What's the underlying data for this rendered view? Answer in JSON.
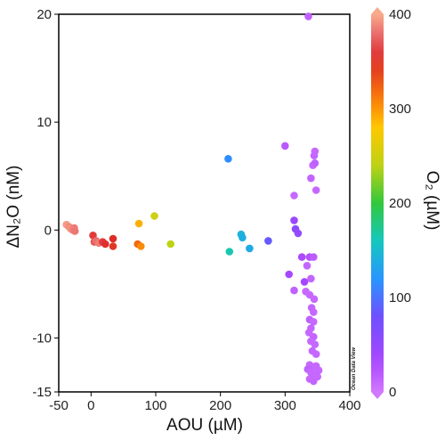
{
  "chart_data": {
    "type": "scatter",
    "xlabel": "AOU (µM)",
    "ylabel": "ΔN₂O (nM)",
    "xlim": [
      -50,
      400
    ],
    "ylim": [
      -15,
      20
    ],
    "x_ticks": [
      -50,
      0,
      100,
      200,
      300,
      400
    ],
    "y_ticks": [
      -15,
      -10,
      0,
      10,
      20
    ],
    "grid": false,
    "watermark": "Ocean Data View",
    "colorbar": {
      "label": "O₂ (µM)",
      "min": 0,
      "max": 400,
      "ticks": [
        0,
        100,
        200,
        300,
        400
      ]
    },
    "points": [
      {
        "x": 336,
        "y": 19.8,
        "c": 15
      },
      {
        "x": -38,
        "y": 0.5,
        "c": 395
      },
      {
        "x": -34,
        "y": 0.3,
        "c": 390
      },
      {
        "x": -31,
        "y": 0.1,
        "c": 392
      },
      {
        "x": -28,
        "y": 0.0,
        "c": 388
      },
      {
        "x": -26,
        "y": 0.2,
        "c": 385
      },
      {
        "x": -25,
        "y": -0.1,
        "c": 383
      },
      {
        "x": 3,
        "y": -0.5,
        "c": 360
      },
      {
        "x": 5,
        "y": -1.1,
        "c": 370
      },
      {
        "x": 8,
        "y": -1.0,
        "c": 380
      },
      {
        "x": 12,
        "y": -1.2,
        "c": 385
      },
      {
        "x": 18,
        "y": -1.1,
        "c": 360
      },
      {
        "x": 22,
        "y": -1.3,
        "c": 355
      },
      {
        "x": 34,
        "y": -0.8,
        "c": 350
      },
      {
        "x": 34,
        "y": -1.5,
        "c": 345
      },
      {
        "x": 72,
        "y": -1.3,
        "c": 320
      },
      {
        "x": 74,
        "y": 0.6,
        "c": 290
      },
      {
        "x": 77,
        "y": -1.5,
        "c": 305
      },
      {
        "x": 98,
        "y": 1.3,
        "c": 250
      },
      {
        "x": 123,
        "y": -1.3,
        "c": 240
      },
      {
        "x": 212,
        "y": 6.6,
        "c": 115
      },
      {
        "x": 214,
        "y": -2.0,
        "c": 165
      },
      {
        "x": 232,
        "y": -0.4,
        "c": 145
      },
      {
        "x": 234,
        "y": -0.7,
        "c": 140
      },
      {
        "x": 245,
        "y": -1.7,
        "c": 135
      },
      {
        "x": 274,
        "y": -1.0,
        "c": 85
      },
      {
        "x": 300,
        "y": 7.8,
        "c": 20
      },
      {
        "x": 306,
        "y": -4.1,
        "c": 35
      },
      {
        "x": 314,
        "y": 3.2,
        "c": 10
      },
      {
        "x": 314,
        "y": 0.9,
        "c": 45
      },
      {
        "x": 316,
        "y": 0.1,
        "c": 55
      },
      {
        "x": 320,
        "y": -0.3,
        "c": 50
      },
      {
        "x": 314,
        "y": -5.6,
        "c": 15
      },
      {
        "x": 326,
        "y": -2.5,
        "c": 30
      },
      {
        "x": 330,
        "y": -4.8,
        "c": 35
      },
      {
        "x": 332,
        "y": -5.7,
        "c": 10
      },
      {
        "x": 334,
        "y": -3.3,
        "c": 12
      },
      {
        "x": 338,
        "y": -2.5,
        "c": 25
      },
      {
        "x": 340,
        "y": 4.8,
        "c": 12
      },
      {
        "x": 343,
        "y": 6.0,
        "c": 10
      },
      {
        "x": 345,
        "y": 6.9,
        "c": 12
      },
      {
        "x": 346,
        "y": 7.3,
        "c": 10
      },
      {
        "x": 346,
        "y": 6.2,
        "c": 15
      },
      {
        "x": 348,
        "y": 3.7,
        "c": 10
      },
      {
        "x": 344,
        "y": -2.5,
        "c": 18
      },
      {
        "x": 340,
        "y": -4.5,
        "c": 12
      },
      {
        "x": 338,
        "y": -6.0,
        "c": 10
      },
      {
        "x": 345,
        "y": -6.4,
        "c": 10
      },
      {
        "x": 341,
        "y": -7.2,
        "c": 12
      },
      {
        "x": 344,
        "y": -7.6,
        "c": 10
      },
      {
        "x": 338,
        "y": -8.3,
        "c": 15
      },
      {
        "x": 344,
        "y": -8.5,
        "c": 10
      },
      {
        "x": 340,
        "y": -9.1,
        "c": 12
      },
      {
        "x": 337,
        "y": -9.5,
        "c": 10
      },
      {
        "x": 344,
        "y": -9.9,
        "c": 12
      },
      {
        "x": 340,
        "y": -10.3,
        "c": 10
      },
      {
        "x": 346,
        "y": -10.6,
        "c": 10
      },
      {
        "x": 342,
        "y": -11.2,
        "c": 12
      },
      {
        "x": 348,
        "y": -11.5,
        "c": 10
      },
      {
        "x": 338,
        "y": -12.5,
        "c": 10
      },
      {
        "x": 343,
        "y": -12.7,
        "c": 12
      },
      {
        "x": 348,
        "y": -12.6,
        "c": 10
      },
      {
        "x": 335,
        "y": -12.9,
        "c": 15
      },
      {
        "x": 352,
        "y": -13.0,
        "c": 10
      },
      {
        "x": 340,
        "y": -13.2,
        "c": 10
      },
      {
        "x": 346,
        "y": -13.4,
        "c": 12
      },
      {
        "x": 350,
        "y": -13.6,
        "c": 10
      },
      {
        "x": 338,
        "y": -13.8,
        "c": 10
      },
      {
        "x": 344,
        "y": -14.0,
        "c": 12
      },
      {
        "x": 342,
        "y": -13.5,
        "c": 10
      }
    ]
  }
}
